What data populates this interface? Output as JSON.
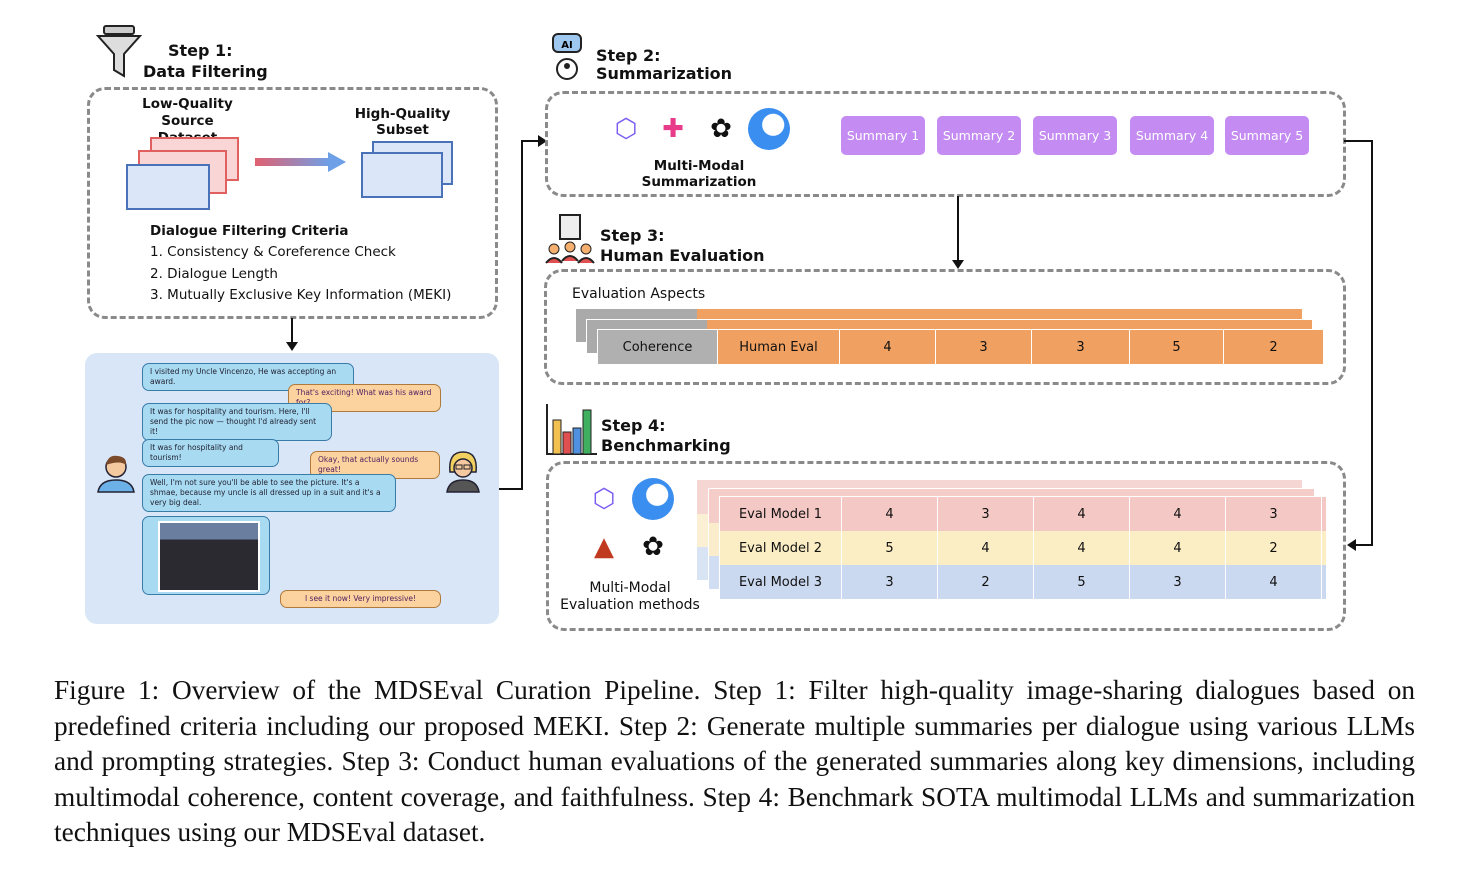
{
  "step1": {
    "title": "Step 1:",
    "subtitle": "Data Filtering",
    "source_label": "Low-Quality Source Dataset",
    "subset_label": "High-Quality Subset",
    "criteria_title": "Dialogue Filtering Criteria",
    "criteria": [
      "1. Consistency & Coreference Check",
      "2. Dialogue Length",
      "3. Mutually Exclusive Key Information (MEKI)"
    ]
  },
  "dialogue": [
    {
      "side": "left",
      "text": "I visited my Uncle Vincenzo, He was accepting an award."
    },
    {
      "side": "right",
      "text": "That's exciting! What was his award for?"
    },
    {
      "side": "left",
      "text": "It was for hospitality and tourism. Here, I'll send the pic now — thought I'd already sent it!"
    },
    {
      "side": "left",
      "text": "It was for hospitality and tourism!"
    },
    {
      "side": "right",
      "text": "Okay, that actually sounds great!"
    },
    {
      "side": "left",
      "text": "Well, I'm not sure you'll be able to see the picture. It's a shmae, because my uncle is all dressed up in a suit and it's a very big deal."
    },
    {
      "side": "right",
      "text": "I see it now! Very impressive!"
    }
  ],
  "step2": {
    "title": "Step 2:",
    "subtitle": "Summarization",
    "method_label": "Multi-Modal Summarization",
    "summaries": [
      "Summary 1",
      "Summary 2",
      "Summary 3",
      "Summary 4",
      "Summary 5"
    ]
  },
  "step3": {
    "title": "Step 3:",
    "subtitle": "Human Evaluation",
    "aspects_label": "Evaluation Aspects",
    "aspect": "Coherence",
    "evaluator": "Human Eval",
    "scores": [
      "4",
      "3",
      "3",
      "5",
      "2"
    ]
  },
  "step4": {
    "title": "Step 4:",
    "subtitle": "Benchmarking",
    "methods_label": "Multi-Modal Evaluation methods",
    "rows": [
      {
        "model": "Eval Model 1",
        "scores": [
          "4",
          "3",
          "4",
          "4",
          "3"
        ],
        "color": "#f4c8c4"
      },
      {
        "model": "Eval Model 2",
        "scores": [
          "5",
          "4",
          "4",
          "4",
          "2"
        ],
        "color": "#fbedc4"
      },
      {
        "model": "Eval Model 3",
        "scores": [
          "3",
          "2",
          "5",
          "3",
          "4"
        ],
        "color": "#cbd9f0"
      }
    ]
  },
  "caption": "Figure 1: Overview of the MDSEval Curation Pipeline. Step 1: Filter high-quality image-sharing dialogues based on predefined criteria including our proposed MEKI. Step 2: Generate multiple summaries per dialogue using various LLMs and prompting strategies. Step 3: Conduct human evaluations of the generated summaries along key dimensions, including multimodal coherence, content coverage, and faithfulness. Step 4: Benchmark SOTA multimodal LLMs and summarization techniques using our MDSEval dataset."
}
